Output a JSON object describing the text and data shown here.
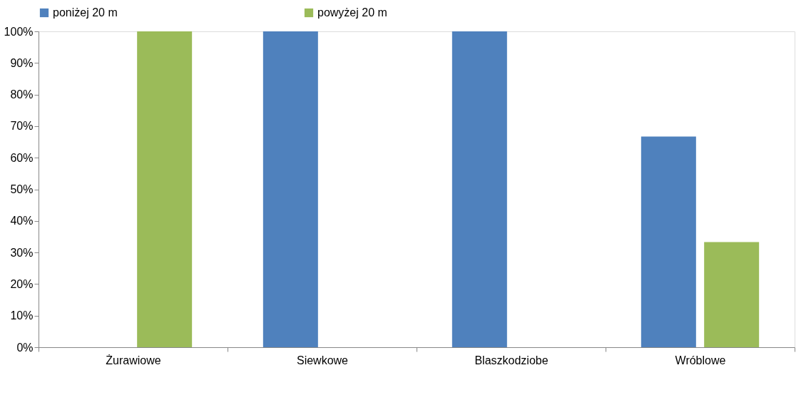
{
  "chart_data": {
    "type": "bar",
    "categories": [
      "Żurawiowe",
      "Siewkowe",
      "Blaszkodziobe",
      "Wróblowe"
    ],
    "series": [
      {
        "name": "poniżej 20 m",
        "color": "#4f81bd",
        "values": [
          0,
          100,
          100,
          66.7
        ]
      },
      {
        "name": "powyżej 20 m",
        "color": "#9bbb59",
        "values": [
          100,
          0,
          0,
          33.3
        ]
      }
    ],
    "ylim": [
      0,
      100
    ],
    "yticks": [
      {
        "value": 0,
        "label": "0%"
      },
      {
        "value": 10,
        "label": "10%"
      },
      {
        "value": 20,
        "label": "20%"
      },
      {
        "value": 30,
        "label": "30%"
      },
      {
        "value": 40,
        "label": "40%"
      },
      {
        "value": 50,
        "label": "50%"
      },
      {
        "value": 60,
        "label": "60%"
      },
      {
        "value": 70,
        "label": "70%"
      },
      {
        "value": 80,
        "label": "80%"
      },
      {
        "value": 90,
        "label": "90%"
      },
      {
        "value": 100,
        "label": "100%"
      }
    ],
    "grid": false,
    "legend": "top"
  }
}
